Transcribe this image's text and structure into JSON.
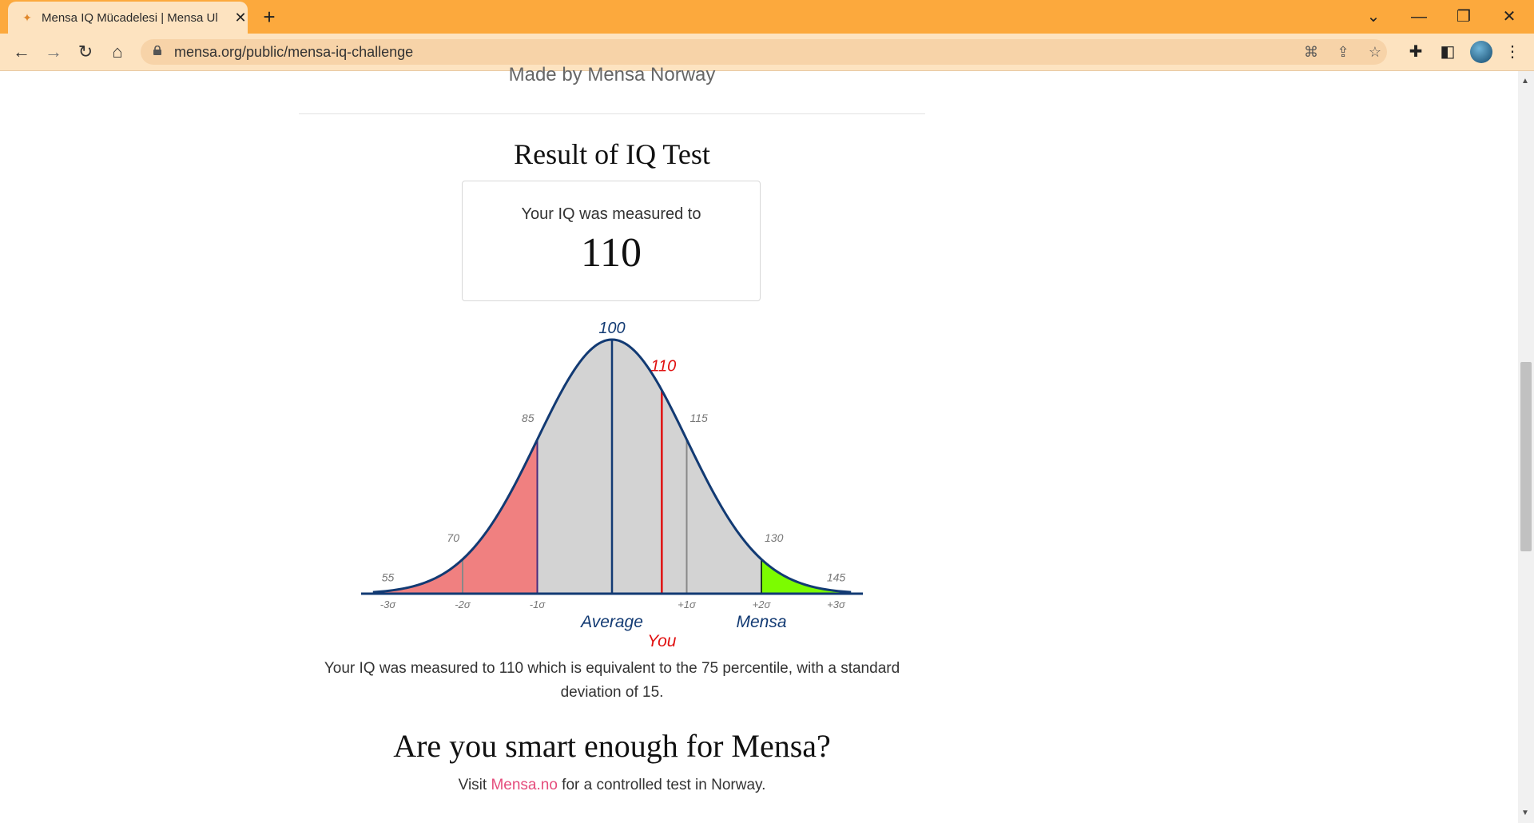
{
  "browser": {
    "tab_title": "Mensa IQ Mücadelesi | Mensa Ul",
    "tab_close": "✕",
    "new_tab": "+",
    "url": "mensa.org/public/mensa-iq-challenge",
    "buttons": {
      "back": "←",
      "forward": "→",
      "reload": "↻",
      "home": "⌂"
    },
    "window": {
      "dropdown": "⌄",
      "minimize": "—",
      "restore": "❐",
      "close": "✕"
    },
    "icons": [
      "translate-icon",
      "share-icon",
      "bookmark-star-icon",
      "extensions-icon",
      "sidebar-icon",
      "avatar",
      "menu-icon"
    ],
    "accent_color": "#fca93d"
  },
  "page": {
    "made_by": "Made by Mensa Norway",
    "result_title": "Result of IQ Test",
    "iq_label": "Your IQ was measured to",
    "iq_value": "110",
    "description": "Your IQ was measured to 110 which is equivalent to the 75 percentile, with a standard deviation of 15.",
    "cta_title": "Are you smart enough for Mensa?",
    "visit_prefix": "Visit ",
    "visit_link": "Mensa.no",
    "visit_suffix": " for a controlled test in Norway."
  },
  "chart_data": {
    "type": "area",
    "mean": 100,
    "sd": 15,
    "you": 110,
    "xlim": [
      52,
      148
    ],
    "peak_label": "100",
    "you_label": "110",
    "top_labels": [
      {
        "x": 55,
        "label": "55"
      },
      {
        "x": 70,
        "label": "70"
      },
      {
        "x": 85,
        "label": "85"
      },
      {
        "x": 115,
        "label": "115"
      },
      {
        "x": 130,
        "label": "130"
      },
      {
        "x": 145,
        "label": "145"
      }
    ],
    "sigma_labels": [
      {
        "x": 55,
        "label": "-3σ"
      },
      {
        "x": 70,
        "label": "-2σ"
      },
      {
        "x": 85,
        "label": "-1σ"
      },
      {
        "x": 115,
        "label": "+1σ"
      },
      {
        "x": 130,
        "label": "+2σ"
      },
      {
        "x": 145,
        "label": "+3σ"
      }
    ],
    "region_labels": [
      {
        "x": 100,
        "label": "Average",
        "color": "#123a73"
      },
      {
        "x": 130,
        "label": "Mensa",
        "color": "#123a73"
      },
      {
        "x": 110,
        "label": "You",
        "color": "#e01010"
      }
    ],
    "colors": {
      "curve": "#123a73",
      "fill": "#d3d3d3",
      "low": "#f08080",
      "mensa": "#7cfc00",
      "you": "#e01010",
      "grid": "#888888"
    }
  }
}
